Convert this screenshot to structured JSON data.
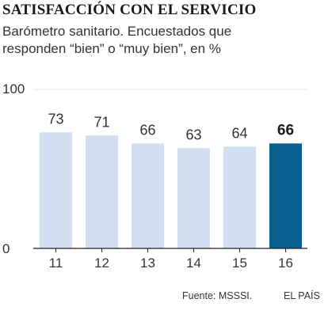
{
  "chart_data": {
    "type": "bar",
    "title": "SATISFACCIÓN CON EL SERVICIO",
    "subtitle_lines": [
      "Barómetro sanitario. Encuestados que",
      "responden “bien” o “muy bien”, en %"
    ],
    "categories": [
      "11",
      "12",
      "13",
      "14",
      "15",
      "16"
    ],
    "values": [
      73,
      71,
      66,
      63,
      64,
      66
    ],
    "ylim": [
      0,
      100
    ],
    "y_ticks": [
      "0",
      "100"
    ],
    "highlight_index": 5,
    "colors": {
      "bar": "#d1dff0",
      "highlight": "#0a5f92",
      "axis": "#222222",
      "grid": "#e6e6e6",
      "text": "#333333"
    },
    "grid": true,
    "source": "Fuente: MSSSI.",
    "brand": "EL PAÍS"
  }
}
